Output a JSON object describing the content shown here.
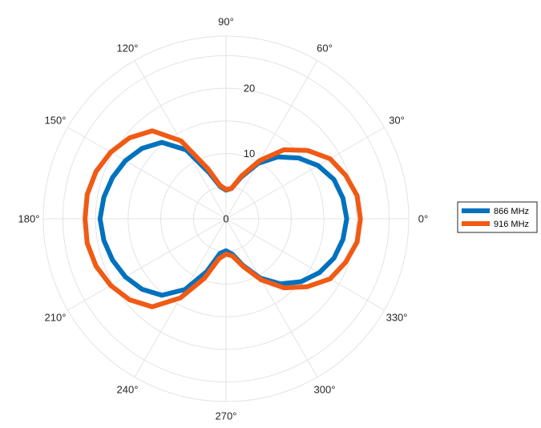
{
  "chart_data": {
    "type": "polar-line",
    "title": "",
    "theta_unit": "degrees",
    "r_ticks": [
      0,
      10,
      20
    ],
    "r_tick_labels": [
      "0",
      "10",
      "20"
    ],
    "r_lim": [
      0,
      28
    ],
    "theta_ticks": [
      0,
      30,
      60,
      90,
      120,
      150,
      180,
      210,
      240,
      270,
      300,
      330
    ],
    "theta_tick_labels": [
      "0°",
      "30°",
      "60°",
      "90°",
      "120°",
      "150°",
      "180°",
      "210°",
      "240°",
      "270°",
      "300°",
      "330°"
    ],
    "grid": true,
    "legend_position": "right",
    "series": [
      {
        "name": "866 MHz",
        "color": "#0072BD",
        "theta": [
          0,
          10,
          20,
          30,
          40,
          50,
          60,
          70,
          80,
          90,
          100,
          110,
          120,
          130,
          140,
          150,
          160,
          170,
          180,
          190,
          200,
          210,
          220,
          230,
          240,
          250,
          260,
          270,
          280,
          290,
          300,
          310,
          320,
          330,
          340,
          350
        ],
        "r": [
          18.5,
          18.2,
          17.6,
          16.3,
          14.5,
          12.4,
          9.8,
          6.8,
          4.7,
          4.4,
          5.0,
          7.5,
          12.2,
          15.3,
          16.8,
          17.8,
          18.5,
          19.0,
          19.3,
          19.0,
          18.5,
          17.8,
          16.8,
          15.3,
          12.5,
          8.6,
          5.4,
          4.9,
          5.5,
          7.6,
          10.5,
          13.0,
          15.0,
          16.5,
          17.6,
          18.2
        ]
      },
      {
        "name": "916 MHz",
        "color": "#F05A14",
        "theta": [
          0,
          10,
          20,
          30,
          40,
          50,
          60,
          70,
          80,
          90,
          100,
          110,
          120,
          130,
          140,
          150,
          160,
          170,
          180,
          190,
          200,
          210,
          220,
          230,
          240,
          250,
          260,
          270,
          280,
          290,
          300,
          310,
          320,
          330,
          340,
          350
        ],
        "r": [
          20.6,
          20.4,
          19.5,
          18.4,
          16.3,
          13.8,
          10.3,
          7.0,
          4.7,
          4.5,
          5.2,
          8.2,
          13.8,
          17.6,
          19.3,
          20.4,
          21.2,
          21.6,
          21.6,
          21.6,
          21.2,
          20.4,
          19.3,
          17.6,
          14.0,
          9.7,
          6.2,
          5.4,
          5.8,
          7.8,
          10.8,
          13.8,
          16.2,
          18.4,
          19.5,
          20.4
        ]
      }
    ]
  }
}
